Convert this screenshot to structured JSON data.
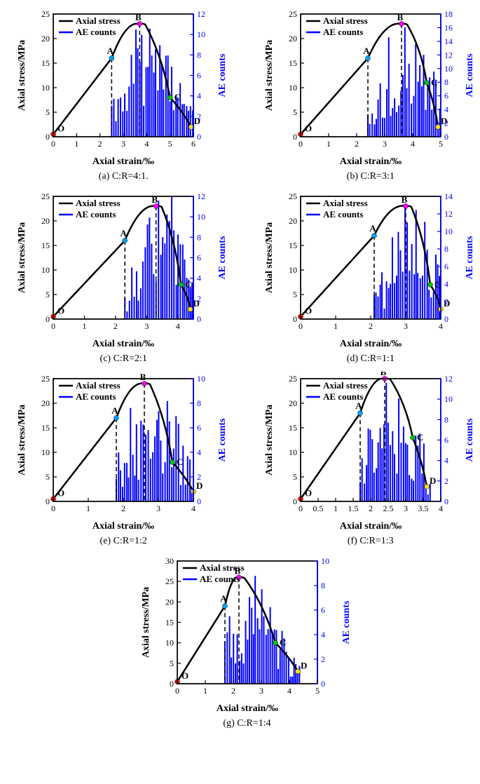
{
  "global": {
    "xlabel": "Axial strain/‰",
    "ylabel_left": "Axial stress/MPa",
    "ylabel_right": "AE counts",
    "legend": {
      "stress": "Axial stress",
      "ae": "AE counts"
    },
    "colors": {
      "stress_line": "#000000",
      "ae_bars": "#0000ff",
      "right_axis": "#0000ff",
      "point_O": "#ff0000",
      "point_A": "#00a2ff",
      "point_B": "#ff00ff",
      "point_C": "#00c800",
      "point_D": "#ffe000",
      "dashed": "#000000",
      "background": "#ffffff"
    },
    "linewidth_stress": 2.5,
    "bar_width_ratio": 0.015,
    "tick_len": 5,
    "fontsize_tick": 12,
    "fontsize_label": 14,
    "fontsize_caption": 14,
    "fontsize_legend": 13
  },
  "plots": [
    {
      "id": "a",
      "caption": "(a) C:R=4:1.",
      "xlim": [
        0,
        6
      ],
      "xticks_step": 1,
      "ylim_left": [
        0,
        25
      ],
      "yticks_left_step": 5,
      "ylim_right": [
        0,
        12
      ],
      "yticks_right_step": 2,
      "points": {
        "O": [
          0,
          0.5
        ],
        "A": [
          2.5,
          16
        ],
        "B": [
          3.7,
          23
        ],
        "C": [
          5.0,
          8
        ],
        "D": [
          5.9,
          2
        ]
      },
      "ae_seed": 11,
      "ae_range": [
        2.5,
        6.0
      ],
      "ae_peak_x": 4.0,
      "ae_peak_y": 10.5
    },
    {
      "id": "b",
      "caption": "(b) C:R=3:1",
      "xlim": [
        0,
        5
      ],
      "xticks_step": 1,
      "ylim_left": [
        0,
        25
      ],
      "yticks_left_step": 5,
      "ylim_right": [
        0,
        18
      ],
      "yticks_right_step": 2,
      "points": {
        "O": [
          0,
          0.5
        ],
        "A": [
          2.4,
          16
        ],
        "B": [
          3.6,
          23
        ],
        "C": [
          4.5,
          11
        ],
        "D": [
          4.9,
          2
        ]
      },
      "ae_seed": 22,
      "ae_range": [
        2.4,
        5.0
      ],
      "ae_peak_x": 3.8,
      "ae_peak_y": 16
    },
    {
      "id": "c",
      "caption": "(c) C:R=2:1",
      "xlim": [
        0,
        4.5
      ],
      "xticks": [
        0,
        1,
        2,
        3,
        4
      ],
      "ylim_left": [
        0,
        25
      ],
      "yticks_left_step": 5,
      "ylim_right": [
        0,
        12
      ],
      "yticks_right_step": 2,
      "points": {
        "O": [
          0,
          0.5
        ],
        "A": [
          2.3,
          16
        ],
        "B": [
          3.3,
          23
        ],
        "C": [
          4.1,
          7
        ],
        "D": [
          4.4,
          2
        ]
      },
      "ae_seed": 33,
      "ae_range": [
        2.3,
        4.5
      ],
      "ae_peak_x": 3.5,
      "ae_peak_y": 11.5
    },
    {
      "id": "d",
      "caption": "(d) C:R=1:1",
      "xlim": [
        0,
        4
      ],
      "xticks_step": 1,
      "ylim_left": [
        0,
        25
      ],
      "yticks_left_step": 5,
      "ylim_right": [
        0,
        14
      ],
      "yticks_right_step": 2,
      "points": {
        "O": [
          0,
          0.5
        ],
        "A": [
          2.1,
          17
        ],
        "B": [
          3.0,
          23
        ],
        "C": [
          3.7,
          7
        ],
        "D": [
          4.0,
          2
        ]
      },
      "ae_seed": 44,
      "ae_range": [
        2.1,
        4.0
      ],
      "ae_peak_x": 3.2,
      "ae_peak_y": 13
    },
    {
      "id": "e",
      "caption": "(e) C:R=1:2",
      "xlim": [
        0,
        4
      ],
      "xticks_step": 1,
      "ylim_left": [
        0,
        25
      ],
      "yticks_left_step": 5,
      "ylim_right": [
        0,
        10
      ],
      "yticks_right_step": 2,
      "points": {
        "O": [
          0,
          0.5
        ],
        "A": [
          1.8,
          17
        ],
        "B": [
          2.6,
          24
        ],
        "C": [
          3.4,
          8
        ],
        "D": [
          4.0,
          2
        ]
      },
      "ae_seed": 55,
      "ae_range": [
        1.8,
        4.0
      ],
      "ae_peak_x": 2.9,
      "ae_peak_y": 9.5
    },
    {
      "id": "f",
      "caption": "(f) C:R=1:3",
      "xlim": [
        0,
        4.0
      ],
      "xticks": [
        0,
        0.5,
        1.0,
        1.5,
        2.0,
        2.5,
        3.0,
        3.5,
        4.0
      ],
      "ylim_left": [
        0,
        25
      ],
      "yticks_left_step": 5,
      "ylim_right": [
        0,
        12
      ],
      "yticks_right_step": 2,
      "points": {
        "O": [
          0,
          0.5
        ],
        "A": [
          1.7,
          18
        ],
        "B": [
          2.4,
          25
        ],
        "C": [
          3.2,
          13
        ],
        "D": [
          3.6,
          3
        ]
      },
      "ae_seed": 66,
      "ae_range": [
        1.7,
        3.7
      ],
      "ae_peak_x": 2.6,
      "ae_peak_y": 11
    },
    {
      "id": "g",
      "caption": "(g) C:R=1:4",
      "xlim": [
        0,
        5
      ],
      "xticks_step": 1,
      "ylim_left": [
        0,
        30
      ],
      "yticks_left_step": 5,
      "ylim_right": [
        0,
        10
      ],
      "yticks_right_step": 2,
      "points": {
        "O": [
          0,
          0.5
        ],
        "A": [
          1.7,
          19
        ],
        "B": [
          2.2,
          26
        ],
        "C": [
          3.5,
          10
        ],
        "D": [
          4.3,
          3
        ]
      },
      "ae_seed": 77,
      "ae_range": [
        1.7,
        4.4
      ],
      "ae_peak_x": 2.7,
      "ae_peak_y": 8.5
    }
  ]
}
